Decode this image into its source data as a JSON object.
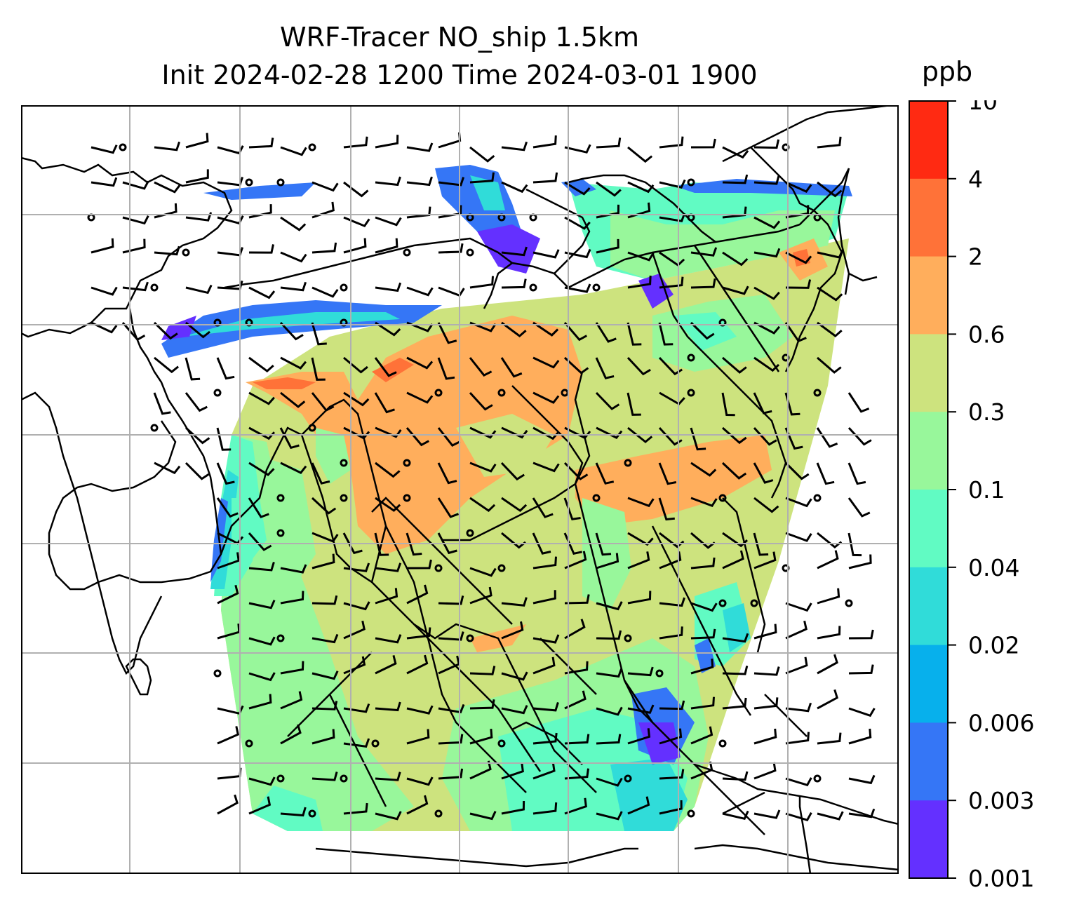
{
  "title": {
    "line1": "WRF-Tracer NO_ship 1.5km",
    "line2": "Init 2024-02-28 1200 Time 2024-03-01 1900"
  },
  "colorbar": {
    "unit": "ppb",
    "levels": [
      "10",
      "4",
      "2",
      "0.6",
      "0.3",
      "0.1",
      "0.04",
      "0.02",
      "0.006",
      "0.003",
      "0.001"
    ],
    "colors": [
      "#ff2a12",
      "#ff7238",
      "#ffae5c",
      "#cde37e",
      "#98f79b",
      "#61fbc3",
      "#30dcd9",
      "#07b0ec",
      "#3576f6",
      "#6430ff"
    ]
  },
  "map": {
    "gridlines": true,
    "coastlines": true,
    "wind_barbs": true
  }
}
